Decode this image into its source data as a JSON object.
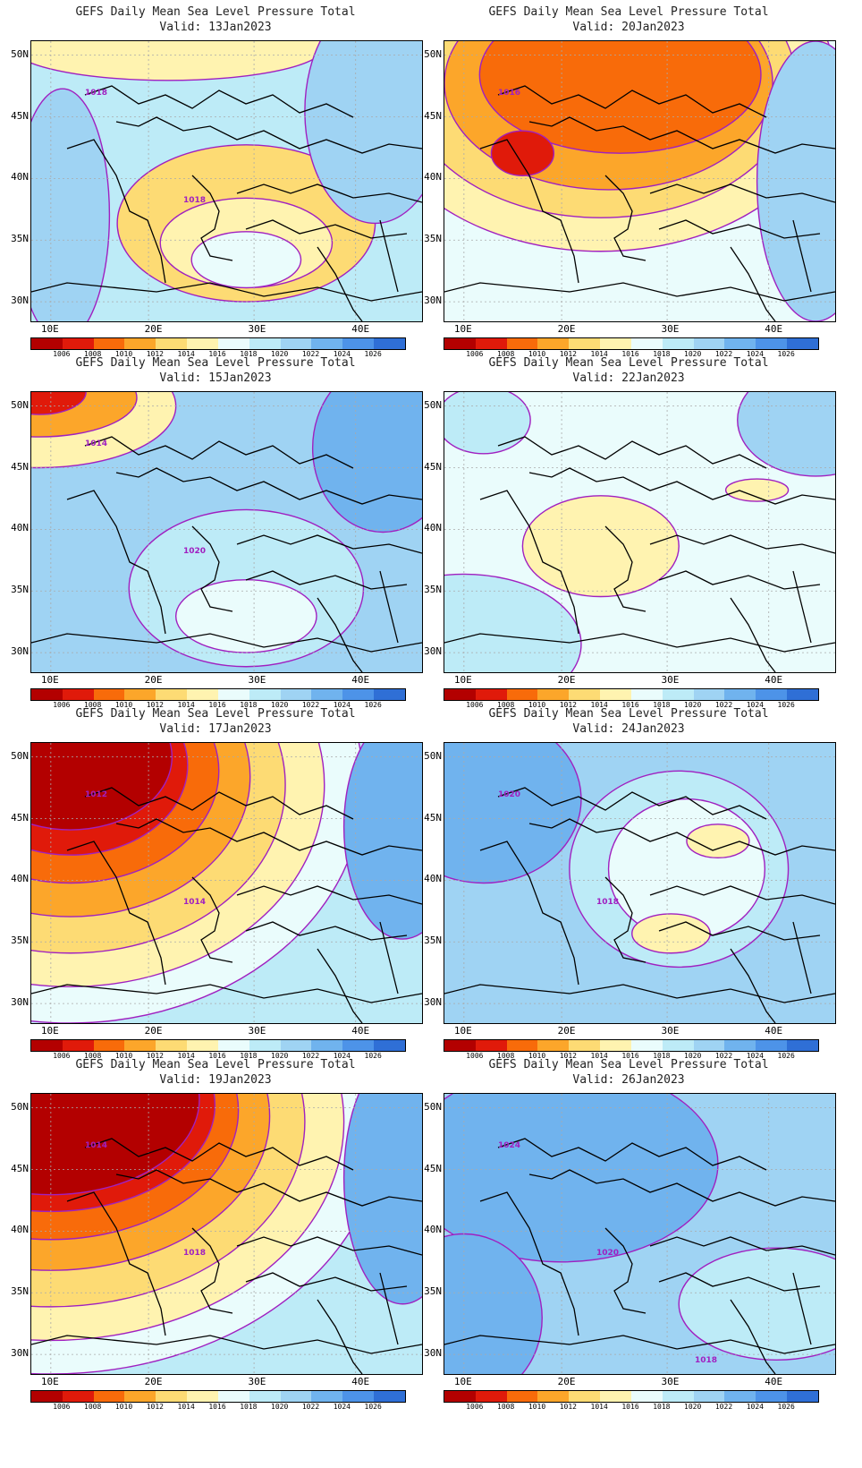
{
  "panels": [
    {
      "title": "GEFS Daily Mean Sea Level Pressure Total",
      "valid": "Valid:  13Jan2023",
      "contour_labels": [
        "1018",
        "1018"
      ],
      "base": 7,
      "blobs": [
        {
          "fx": 0.55,
          "fy": 0.65,
          "rx": 0.33,
          "ry": 0.28,
          "idx": 4
        },
        {
          "fx": 0.55,
          "fy": 0.72,
          "rx": 0.22,
          "ry": 0.16,
          "idx": 5
        },
        {
          "fx": 0.55,
          "fy": 0.78,
          "rx": 0.14,
          "ry": 0.1,
          "idx": 6
        },
        {
          "fx": 0.35,
          "fy": 0.02,
          "rx": 0.4,
          "ry": 0.12,
          "idx": 5
        },
        {
          "fx": 0.88,
          "fy": 0.25,
          "rx": 0.18,
          "ry": 0.4,
          "idx": 8
        },
        {
          "fx": 0.08,
          "fy": 0.62,
          "rx": 0.12,
          "ry": 0.45,
          "idx": 8
        }
      ]
    },
    {
      "title": "GEFS Daily Mean Sea Level Pressure Total",
      "valid": "Valid:  20Jan2023",
      "contour_labels": [
        "1016"
      ],
      "base": 6,
      "blobs": [
        {
          "fx": 0.4,
          "fy": 0.15,
          "rx": 0.6,
          "ry": 0.6,
          "idx": 5
        },
        {
          "fx": 0.4,
          "fy": 0.15,
          "rx": 0.5,
          "ry": 0.48,
          "idx": 4
        },
        {
          "fx": 0.42,
          "fy": 0.15,
          "rx": 0.42,
          "ry": 0.38,
          "idx": 3
        },
        {
          "fx": 0.45,
          "fy": 0.12,
          "rx": 0.36,
          "ry": 0.28,
          "idx": 2
        },
        {
          "fx": 0.2,
          "fy": 0.4,
          "rx": 0.08,
          "ry": 0.08,
          "idx": 1
        },
        {
          "fx": 0.95,
          "fy": 0.5,
          "rx": 0.15,
          "ry": 0.5,
          "idx": 8
        }
      ]
    },
    {
      "title": "GEFS Daily Mean Sea Level Pressure Total",
      "valid": "Valid:  15Jan2023",
      "contour_labels": [
        "1014",
        "1020"
      ],
      "base": 8,
      "blobs": [
        {
          "fx": 0.55,
          "fy": 0.7,
          "rx": 0.3,
          "ry": 0.28,
          "idx": 7
        },
        {
          "fx": 0.55,
          "fy": 0.8,
          "rx": 0.18,
          "ry": 0.13,
          "idx": 6
        },
        {
          "fx": 0.02,
          "fy": 0.05,
          "rx": 0.35,
          "ry": 0.22,
          "idx": 5
        },
        {
          "fx": 0.02,
          "fy": 0.02,
          "rx": 0.25,
          "ry": 0.14,
          "idx": 3
        },
        {
          "fx": 0.02,
          "fy": 0.0,
          "rx": 0.12,
          "ry": 0.08,
          "idx": 1
        },
        {
          "fx": 0.9,
          "fy": 0.2,
          "rx": 0.18,
          "ry": 0.3,
          "idx": 9
        }
      ]
    },
    {
      "title": "GEFS Daily Mean Sea Level Pressure Total",
      "valid": "Valid:  22Jan2023",
      "contour_labels": [],
      "base": 6,
      "blobs": [
        {
          "fx": 0.4,
          "fy": 0.55,
          "rx": 0.2,
          "ry": 0.18,
          "idx": 5
        },
        {
          "fx": 0.8,
          "fy": 0.35,
          "rx": 0.08,
          "ry": 0.04,
          "idx": 5
        },
        {
          "fx": 0.05,
          "fy": 0.9,
          "rx": 0.3,
          "ry": 0.25,
          "idx": 7
        },
        {
          "fx": 0.95,
          "fy": 0.1,
          "rx": 0.2,
          "ry": 0.2,
          "idx": 8
        },
        {
          "fx": 0.1,
          "fy": 0.1,
          "rx": 0.12,
          "ry": 0.12,
          "idx": 7
        }
      ]
    },
    {
      "title": "GEFS Daily Mean Sea Level Pressure Total",
      "valid": "Valid:  17Jan2023",
      "contour_labels": [
        "1012",
        "1014"
      ],
      "base": 7,
      "blobs": [
        {
          "fx": 0.1,
          "fy": 0.15,
          "rx": 0.75,
          "ry": 0.85,
          "idx": 6
        },
        {
          "fx": 0.1,
          "fy": 0.15,
          "rx": 0.65,
          "ry": 0.72,
          "idx": 5
        },
        {
          "fx": 0.1,
          "fy": 0.15,
          "rx": 0.55,
          "ry": 0.6,
          "idx": 4
        },
        {
          "fx": 0.1,
          "fy": 0.12,
          "rx": 0.46,
          "ry": 0.5,
          "idx": 3
        },
        {
          "fx": 0.1,
          "fy": 0.1,
          "rx": 0.38,
          "ry": 0.4,
          "idx": 2
        },
        {
          "fx": 0.1,
          "fy": 0.08,
          "rx": 0.3,
          "ry": 0.32,
          "idx": 1
        },
        {
          "fx": 0.1,
          "fy": 0.05,
          "rx": 0.26,
          "ry": 0.26,
          "idx": 0
        },
        {
          "fx": 0.95,
          "fy": 0.3,
          "rx": 0.15,
          "ry": 0.4,
          "idx": 9
        }
      ]
    },
    {
      "title": "GEFS Daily Mean Sea Level Pressure Total",
      "valid": "Valid:  24Jan2023",
      "contour_labels": [
        "1020",
        "1018"
      ],
      "base": 8,
      "blobs": [
        {
          "fx": 0.6,
          "fy": 0.45,
          "rx": 0.28,
          "ry": 0.35,
          "idx": 7
        },
        {
          "fx": 0.62,
          "fy": 0.45,
          "rx": 0.2,
          "ry": 0.25,
          "idx": 6
        },
        {
          "fx": 0.7,
          "fy": 0.35,
          "rx": 0.08,
          "ry": 0.06,
          "idx": 5
        },
        {
          "fx": 0.58,
          "fy": 0.68,
          "rx": 0.1,
          "ry": 0.07,
          "idx": 5
        },
        {
          "fx": 0.1,
          "fy": 0.2,
          "rx": 0.25,
          "ry": 0.3,
          "idx": 9
        }
      ]
    },
    {
      "title": "GEFS Daily Mean Sea Level Pressure Total",
      "valid": "Valid:  19Jan2023",
      "contour_labels": [
        "1014",
        "1018"
      ],
      "base": 7,
      "blobs": [
        {
          "fx": 0.05,
          "fy": 0.1,
          "rx": 0.85,
          "ry": 0.9,
          "idx": 6
        },
        {
          "fx": 0.05,
          "fy": 0.1,
          "rx": 0.75,
          "ry": 0.78,
          "idx": 5
        },
        {
          "fx": 0.05,
          "fy": 0.1,
          "rx": 0.65,
          "ry": 0.66,
          "idx": 4
        },
        {
          "fx": 0.05,
          "fy": 0.08,
          "rx": 0.56,
          "ry": 0.55,
          "idx": 3
        },
        {
          "fx": 0.05,
          "fy": 0.06,
          "rx": 0.48,
          "ry": 0.46,
          "idx": 2
        },
        {
          "fx": 0.05,
          "fy": 0.04,
          "rx": 0.42,
          "ry": 0.38,
          "idx": 1
        },
        {
          "fx": 0.05,
          "fy": 0.02,
          "rx": 0.38,
          "ry": 0.34,
          "idx": 0
        },
        {
          "fx": 0.95,
          "fy": 0.3,
          "rx": 0.15,
          "ry": 0.45,
          "idx": 9
        }
      ]
    },
    {
      "title": "GEFS Daily Mean Sea Level Pressure Total",
      "valid": "Valid:  26Jan2023",
      "contour_labels": [
        "1024",
        "1020",
        "1018"
      ],
      "base": 8,
      "blobs": [
        {
          "fx": 0.3,
          "fy": 0.25,
          "rx": 0.4,
          "ry": 0.35,
          "idx": 9
        },
        {
          "fx": 0.85,
          "fy": 0.75,
          "rx": 0.25,
          "ry": 0.2,
          "idx": 7
        },
        {
          "fx": 0.05,
          "fy": 0.8,
          "rx": 0.2,
          "ry": 0.3,
          "idx": 9
        }
      ]
    }
  ],
  "lat_labels": [
    "50N",
    "45N",
    "40N",
    "35N",
    "30N"
  ],
  "lon_labels": [
    "10E",
    "20E",
    "30E",
    "40E"
  ],
  "colorbar_labels": [
    "1006",
    "1008",
    "1010",
    "1012",
    "1014",
    "1016",
    "1018",
    "1020",
    "1022",
    "1024",
    "1026"
  ],
  "colorbar_colors": [
    "#b30000",
    "#e01a0a",
    "#f86b0a",
    "#fca62a",
    "#fddb74",
    "#fff3b0",
    "#eafcfc",
    "#bdebf7",
    "#9fd3f3",
    "#70b3ee",
    "#4d93e8",
    "#2f6fd6"
  ]
}
